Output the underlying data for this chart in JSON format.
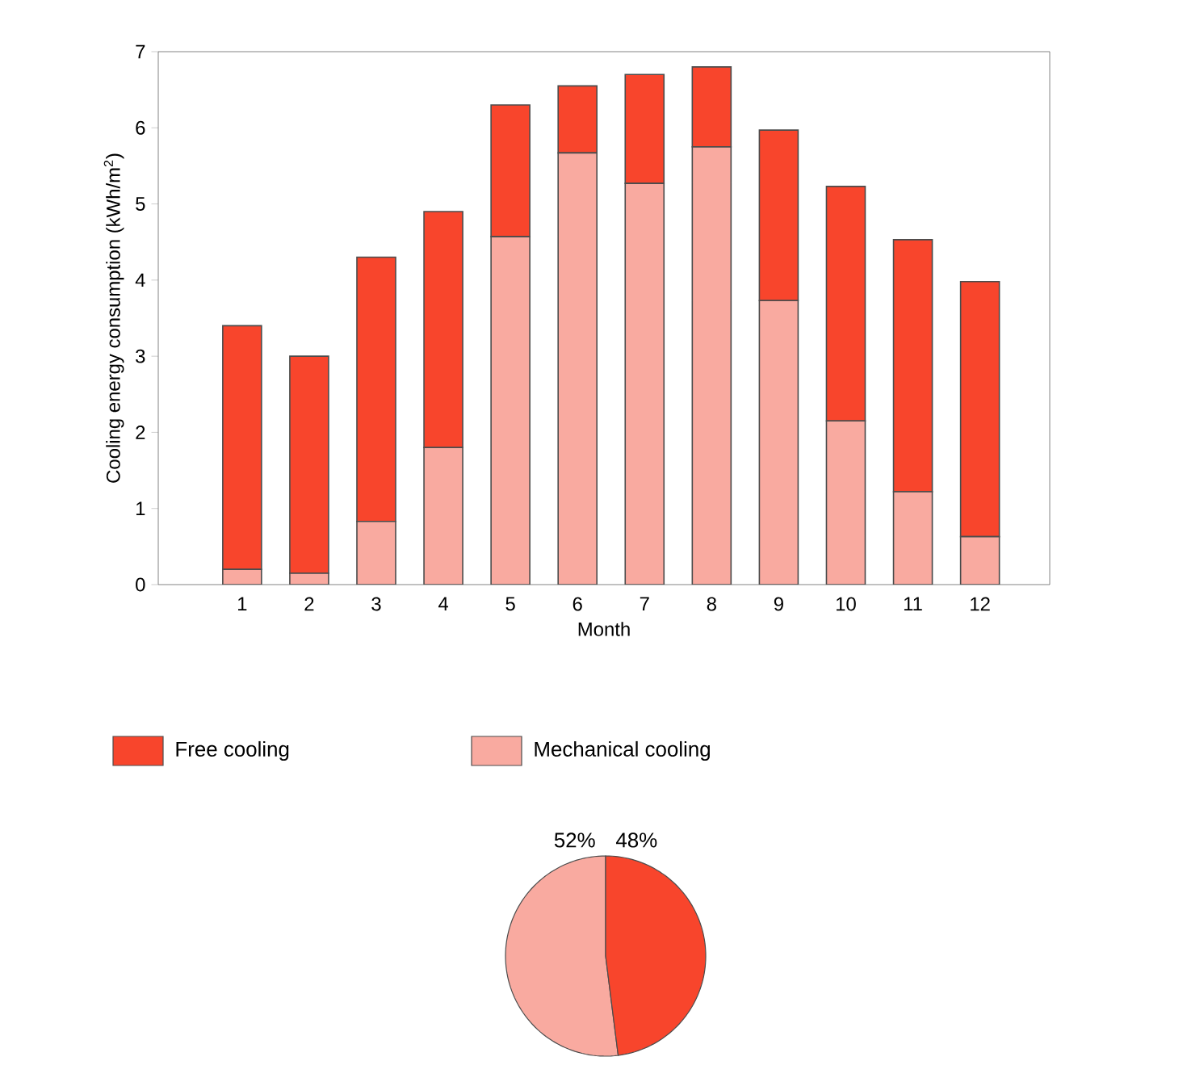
{
  "chart_data": [
    {
      "type": "bar",
      "stacked": true,
      "xlabel": "Month",
      "ylabel": "Cooling energy consumption (kWh/m$^{2}$)",
      "categories": [
        "1",
        "2",
        "3",
        "4",
        "5",
        "6",
        "7",
        "8",
        "9",
        "10",
        "11",
        "12"
      ],
      "series": [
        {
          "name": "Mechanical cooling",
          "color": "#f9aaa0",
          "values": [
            0.2,
            0.15,
            0.83,
            1.8,
            4.57,
            5.67,
            5.27,
            5.75,
            3.73,
            2.15,
            1.22,
            0.63
          ]
        },
        {
          "name": "Free cooling",
          "color": "#f8452c",
          "values": [
            3.2,
            2.85,
            3.47,
            3.1,
            1.73,
            0.88,
            1.43,
            1.05,
            2.24,
            3.08,
            3.31,
            3.35
          ]
        }
      ],
      "ylim": [
        0,
        7
      ],
      "yticks": [
        0,
        1,
        2,
        3,
        4,
        5,
        6,
        7
      ],
      "grid": false,
      "legend": "bottom"
    },
    {
      "type": "pie",
      "categories": [
        null,
        null
      ],
      "values": [
        52,
        48
      ],
      "colors": [
        "#f9aaa0",
        "#f8452c"
      ],
      "value_labels": [
        "52%",
        "48%"
      ]
    }
  ]
}
